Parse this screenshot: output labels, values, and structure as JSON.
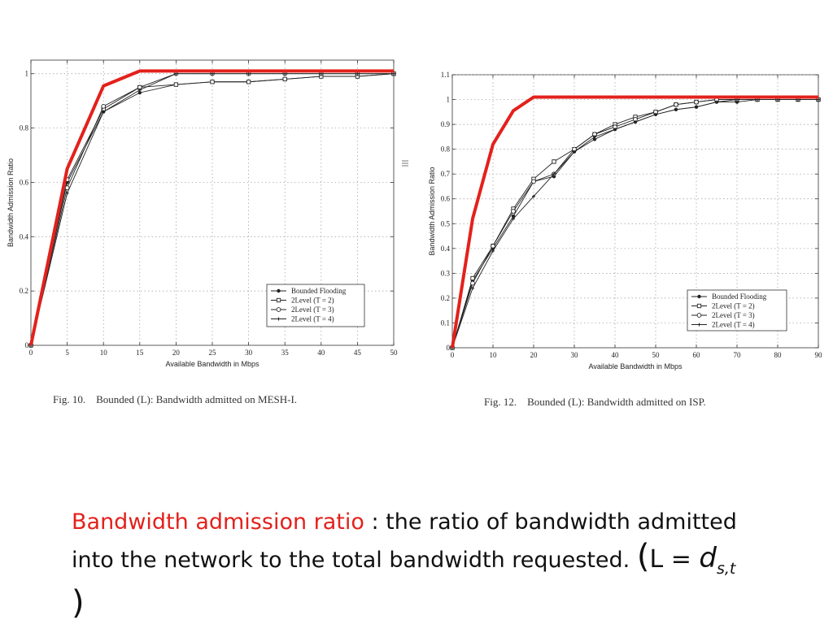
{
  "charts": [
    {
      "id": "mesh",
      "caption": "Fig. 10.    Bounded (L): Bandwidth admitted on MESH-I."
    },
    {
      "id": "isp",
      "caption": "Fig. 12.    Bounded (L): Bandwidth admitted on ISP."
    }
  ],
  "text": {
    "term": "Bandwidth admission ratio",
    "definition_1": " : the ratio of bandwidth admitted into the network to the total bandwidth requested.",
    "formula_open": "(",
    "formula_lhs": "L = ",
    "formula_var": "d",
    "formula_sub": "s,t",
    "formula_close": " )"
  },
  "colors": {
    "highlight": "#e3211c",
    "series": "#222222",
    "grid": "#999999"
  },
  "chart_data": [
    {
      "type": "line",
      "title": "",
      "xlabel": "Available Bandwidth in Mbps",
      "ylabel": "Bandwidth Admission Ratio",
      "xlim": [
        0,
        50
      ],
      "ylim": [
        0,
        1.05
      ],
      "xticks": [
        "0",
        "5",
        "10",
        "15",
        "20",
        "25",
        "30",
        "35",
        "40",
        "45",
        "50"
      ],
      "yticks": [
        "0",
        "0.2",
        "0.4",
        "0.6",
        "0.8",
        "1"
      ],
      "ytick_values": [
        0,
        0.2,
        0.4,
        0.6,
        0.8,
        1
      ],
      "grid": true,
      "legend_position": "bottom-right",
      "x": [
        0,
        5,
        10,
        15,
        20,
        25,
        30,
        35,
        40,
        45,
        50
      ],
      "series": [
        {
          "name": "Bounded Flooding",
          "marker": "dot",
          "values": [
            0,
            0.6,
            0.86,
            0.93,
            0.96,
            0.97,
            0.97,
            0.98,
            0.99,
            0.99,
            1.0
          ]
        },
        {
          "name": "2Level (T = 2)",
          "marker": "square",
          "values": [
            0,
            0.61,
            0.87,
            0.95,
            0.96,
            0.97,
            0.97,
            0.98,
            0.99,
            0.99,
            1.0
          ]
        },
        {
          "name": "2Level (T = 3)",
          "marker": "circle",
          "values": [
            0,
            0.58,
            0.88,
            0.95,
            1.0,
            1.0,
            1.0,
            1.0,
            1.0,
            1.0,
            1.0
          ]
        },
        {
          "name": "2Level (T = 4)",
          "marker": "cross",
          "values": [
            0,
            0.56,
            0.86,
            0.94,
            1.0,
            1.0,
            1.0,
            1.0,
            1.0,
            1.0,
            1.0
          ]
        }
      ],
      "highlight_values": [
        0,
        0.65,
        0.955,
        1.01,
        1.01,
        1.01,
        1.01,
        1.01,
        1.01,
        1.01,
        1.01
      ]
    },
    {
      "type": "line",
      "title": "",
      "xlabel": "Available Bandwidth in Mbps",
      "ylabel": "Bandwidth Admission Ratio",
      "xlim": [
        0,
        90
      ],
      "ylim": [
        0,
        1.1
      ],
      "xticks": [
        "0",
        "10",
        "20",
        "30",
        "40",
        "50",
        "60",
        "70",
        "80",
        "90"
      ],
      "yticks": [
        "0",
        "0.1",
        "0.2",
        "0.3",
        "0.4",
        "0.5",
        "0.6",
        "0.7",
        "0.8",
        "0.9",
        "1",
        "1.1"
      ],
      "ytick_values": [
        0,
        0.1,
        0.2,
        0.3,
        0.4,
        0.5,
        0.6,
        0.7,
        0.8,
        0.9,
        1,
        1.1
      ],
      "grid": true,
      "legend_position": "bottom-right",
      "x": [
        0,
        5,
        10,
        15,
        20,
        25,
        30,
        35,
        40,
        45,
        50,
        55,
        60,
        65,
        70,
        75,
        80,
        85,
        90
      ],
      "series": [
        {
          "name": "Bounded Flooding",
          "marker": "dot",
          "values": [
            0,
            0.27,
            0.4,
            0.53,
            0.67,
            0.69,
            0.79,
            0.84,
            0.88,
            0.91,
            0.94,
            0.96,
            0.97,
            0.99,
            0.99,
            1.0,
            1.0,
            1.0,
            1.0
          ]
        },
        {
          "name": "2Level (T = 2)",
          "marker": "square",
          "values": [
            0,
            0.28,
            0.41,
            0.56,
            0.68,
            0.75,
            0.8,
            0.86,
            0.9,
            0.93,
            0.95,
            0.98,
            0.99,
            1.0,
            1.0,
            1.0,
            1.0,
            1.0,
            1.0
          ]
        },
        {
          "name": "2Level (T = 3)",
          "marker": "circle",
          "values": [
            0,
            0.26,
            0.41,
            0.55,
            0.67,
            0.7,
            0.8,
            0.86,
            0.89,
            0.92,
            0.95,
            0.98,
            0.99,
            1.0,
            1.0,
            1.0,
            1.0,
            1.0,
            1.0
          ]
        },
        {
          "name": "2Level (T = 4)",
          "marker": "cross",
          "values": [
            0,
            0.24,
            0.39,
            0.52,
            0.61,
            0.7,
            0.79,
            0.85,
            0.88,
            0.91,
            0.94,
            0.96,
            0.97,
            0.99,
            1.0,
            1.0,
            1.0,
            1.0,
            1.0
          ]
        }
      ],
      "highlight_values": [
        0,
        0.52,
        0.82,
        0.955,
        1.01,
        1.01,
        1.01,
        1.01,
        1.01,
        1.01,
        1.01,
        1.01,
        1.01,
        1.01,
        1.01,
        1.01,
        1.01,
        1.01,
        1.01
      ]
    }
  ]
}
